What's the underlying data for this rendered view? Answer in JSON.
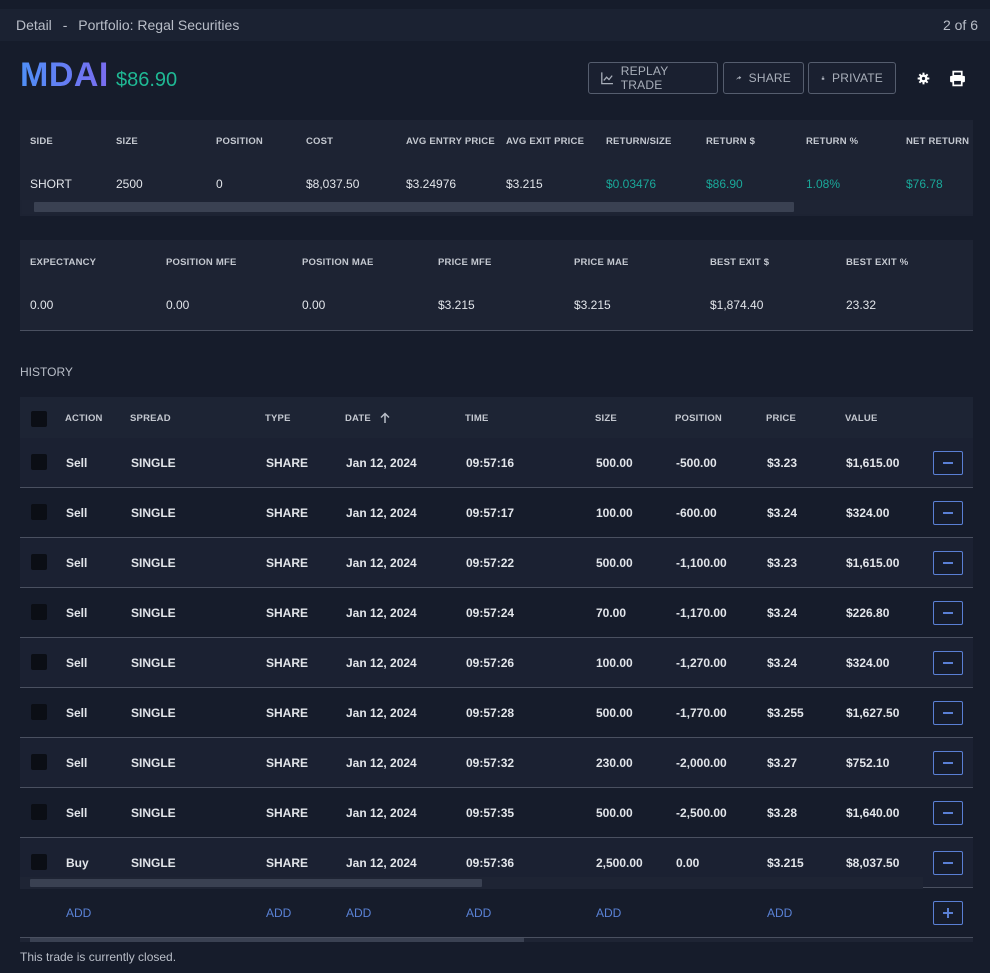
{
  "topbar": {
    "detail": "Detail",
    "sep": "-",
    "portfolio": "Portfolio: Regal Securities",
    "pager": "2 of 6"
  },
  "symbol": {
    "ticker": "MDAI",
    "price": "$86.90"
  },
  "toolbar": {
    "replay_label": "REPLAY TRADE",
    "share_label": "SHARE",
    "private_label": "PRIVATE",
    "settings_icon": "gear-icon",
    "print_icon": "print-icon"
  },
  "summary1": {
    "headers": [
      "SIDE",
      "SIZE",
      "POSITION",
      "COST",
      "AVG ENTRY PRICE",
      "AVG EXIT PRICE",
      "RETURN/SIZE",
      "RETURN $",
      "RETURN %",
      "NET RETURN"
    ],
    "values": [
      "SHORT",
      "2500",
      "0",
      "$8,037.50",
      "$3.24976",
      "$3.215",
      "$0.03476",
      "$86.90",
      "1.08%",
      "$76.78"
    ]
  },
  "summary2": {
    "headers": [
      "EXPECTANCY",
      "POSITION MFE",
      "POSITION MAE",
      "PRICE MFE",
      "PRICE MAE",
      "BEST EXIT $",
      "BEST EXIT %"
    ],
    "values": [
      "0.00",
      "0.00",
      "0.00",
      "$3.215",
      "$3.215",
      "$1,874.40",
      "23.32"
    ]
  },
  "history": {
    "title": "HISTORY",
    "headers": [
      "ACTION",
      "SPREAD",
      "TYPE",
      "DATE",
      "TIME",
      "SIZE",
      "POSITION",
      "PRICE",
      "VALUE"
    ],
    "rows": [
      [
        "Sell",
        "SINGLE",
        "SHARE",
        "Jan 12, 2024",
        "09:57:16",
        "500.00",
        "-500.00",
        "$3.23",
        "$1,615.00"
      ],
      [
        "Sell",
        "SINGLE",
        "SHARE",
        "Jan 12, 2024",
        "09:57:17",
        "100.00",
        "-600.00",
        "$3.24",
        "$324.00"
      ],
      [
        "Sell",
        "SINGLE",
        "SHARE",
        "Jan 12, 2024",
        "09:57:22",
        "500.00",
        "-1,100.00",
        "$3.23",
        "$1,615.00"
      ],
      [
        "Sell",
        "SINGLE",
        "SHARE",
        "Jan 12, 2024",
        "09:57:24",
        "70.00",
        "-1,170.00",
        "$3.24",
        "$226.80"
      ],
      [
        "Sell",
        "SINGLE",
        "SHARE",
        "Jan 12, 2024",
        "09:57:26",
        "100.00",
        "-1,270.00",
        "$3.24",
        "$324.00"
      ],
      [
        "Sell",
        "SINGLE",
        "SHARE",
        "Jan 12, 2024",
        "09:57:28",
        "500.00",
        "-1,770.00",
        "$3.255",
        "$1,627.50"
      ],
      [
        "Sell",
        "SINGLE",
        "SHARE",
        "Jan 12, 2024",
        "09:57:32",
        "230.00",
        "-2,000.00",
        "$3.27",
        "$752.10"
      ],
      [
        "Sell",
        "SINGLE",
        "SHARE",
        "Jan 12, 2024",
        "09:57:35",
        "500.00",
        "-2,500.00",
        "$3.28",
        "$1,640.00"
      ],
      [
        "Buy",
        "SINGLE",
        "SHARE",
        "Jan 12, 2024",
        "09:57:36",
        "2,500.00",
        "0.00",
        "$3.215",
        "$8,037.50"
      ]
    ],
    "add_labels": [
      "ADD",
      "ADD",
      "ADD",
      "ADD",
      "ADD",
      "ADD"
    ]
  },
  "footer": "This trade is currently closed.",
  "colors": {
    "accent": "#5a82d6",
    "positive": "#1aa89a",
    "price": "#1fb894"
  }
}
